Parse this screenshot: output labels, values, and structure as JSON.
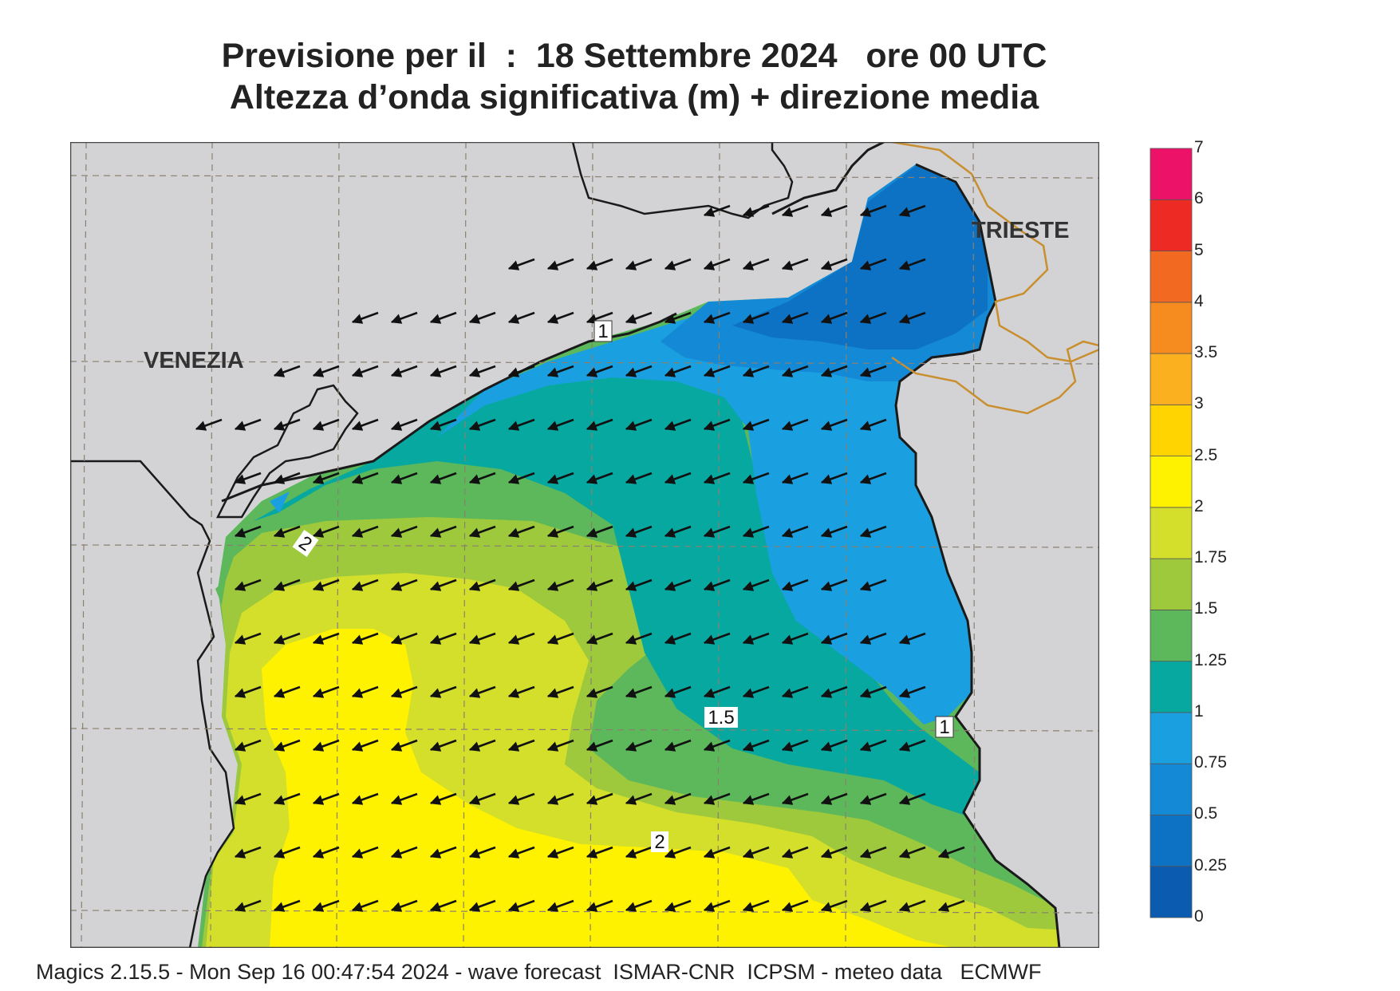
{
  "title": {
    "line1": "Previsione per il  :  18 Settembre 2024   ore 00 UTC",
    "line2": "Altezza d’onda significativa (m) + direzione media"
  },
  "map": {
    "cities": [
      {
        "name": "VENEZIA"
      },
      {
        "name": "TRIESTE"
      }
    ],
    "contour_labels": [
      "1",
      "2",
      "1.5",
      "1",
      "2"
    ],
    "wave_direction": "toward south-west",
    "colors": {
      "land": "#d3d3d5",
      "coastline": "#1a1a1a",
      "border": "#c98f2e",
      "grid": "#8a8070"
    }
  },
  "legend": {
    "ticks": [
      "0",
      "0.25",
      "0.5",
      "0.75",
      "1",
      "1.25",
      "1.5",
      "1.75",
      "2",
      "2.5",
      "3",
      "3.5",
      "4",
      "5",
      "6",
      "7"
    ],
    "colors": [
      "#0b5bb0",
      "#0d72c4",
      "#1489d6",
      "#1aa0e0",
      "#07a8a0",
      "#5cb85a",
      "#9ec93c",
      "#d4df2b",
      "#fff200",
      "#ffd400",
      "#fbb020",
      "#f68b1f",
      "#f26a22",
      "#ee2a24",
      "#ec1268"
    ]
  },
  "footer": "Magics 2.15.5 - Mon Sep 16 00:47:54 2024 - wave forecast  ISMAR-CNR  ICPSM - meteo data   ECMWF"
}
